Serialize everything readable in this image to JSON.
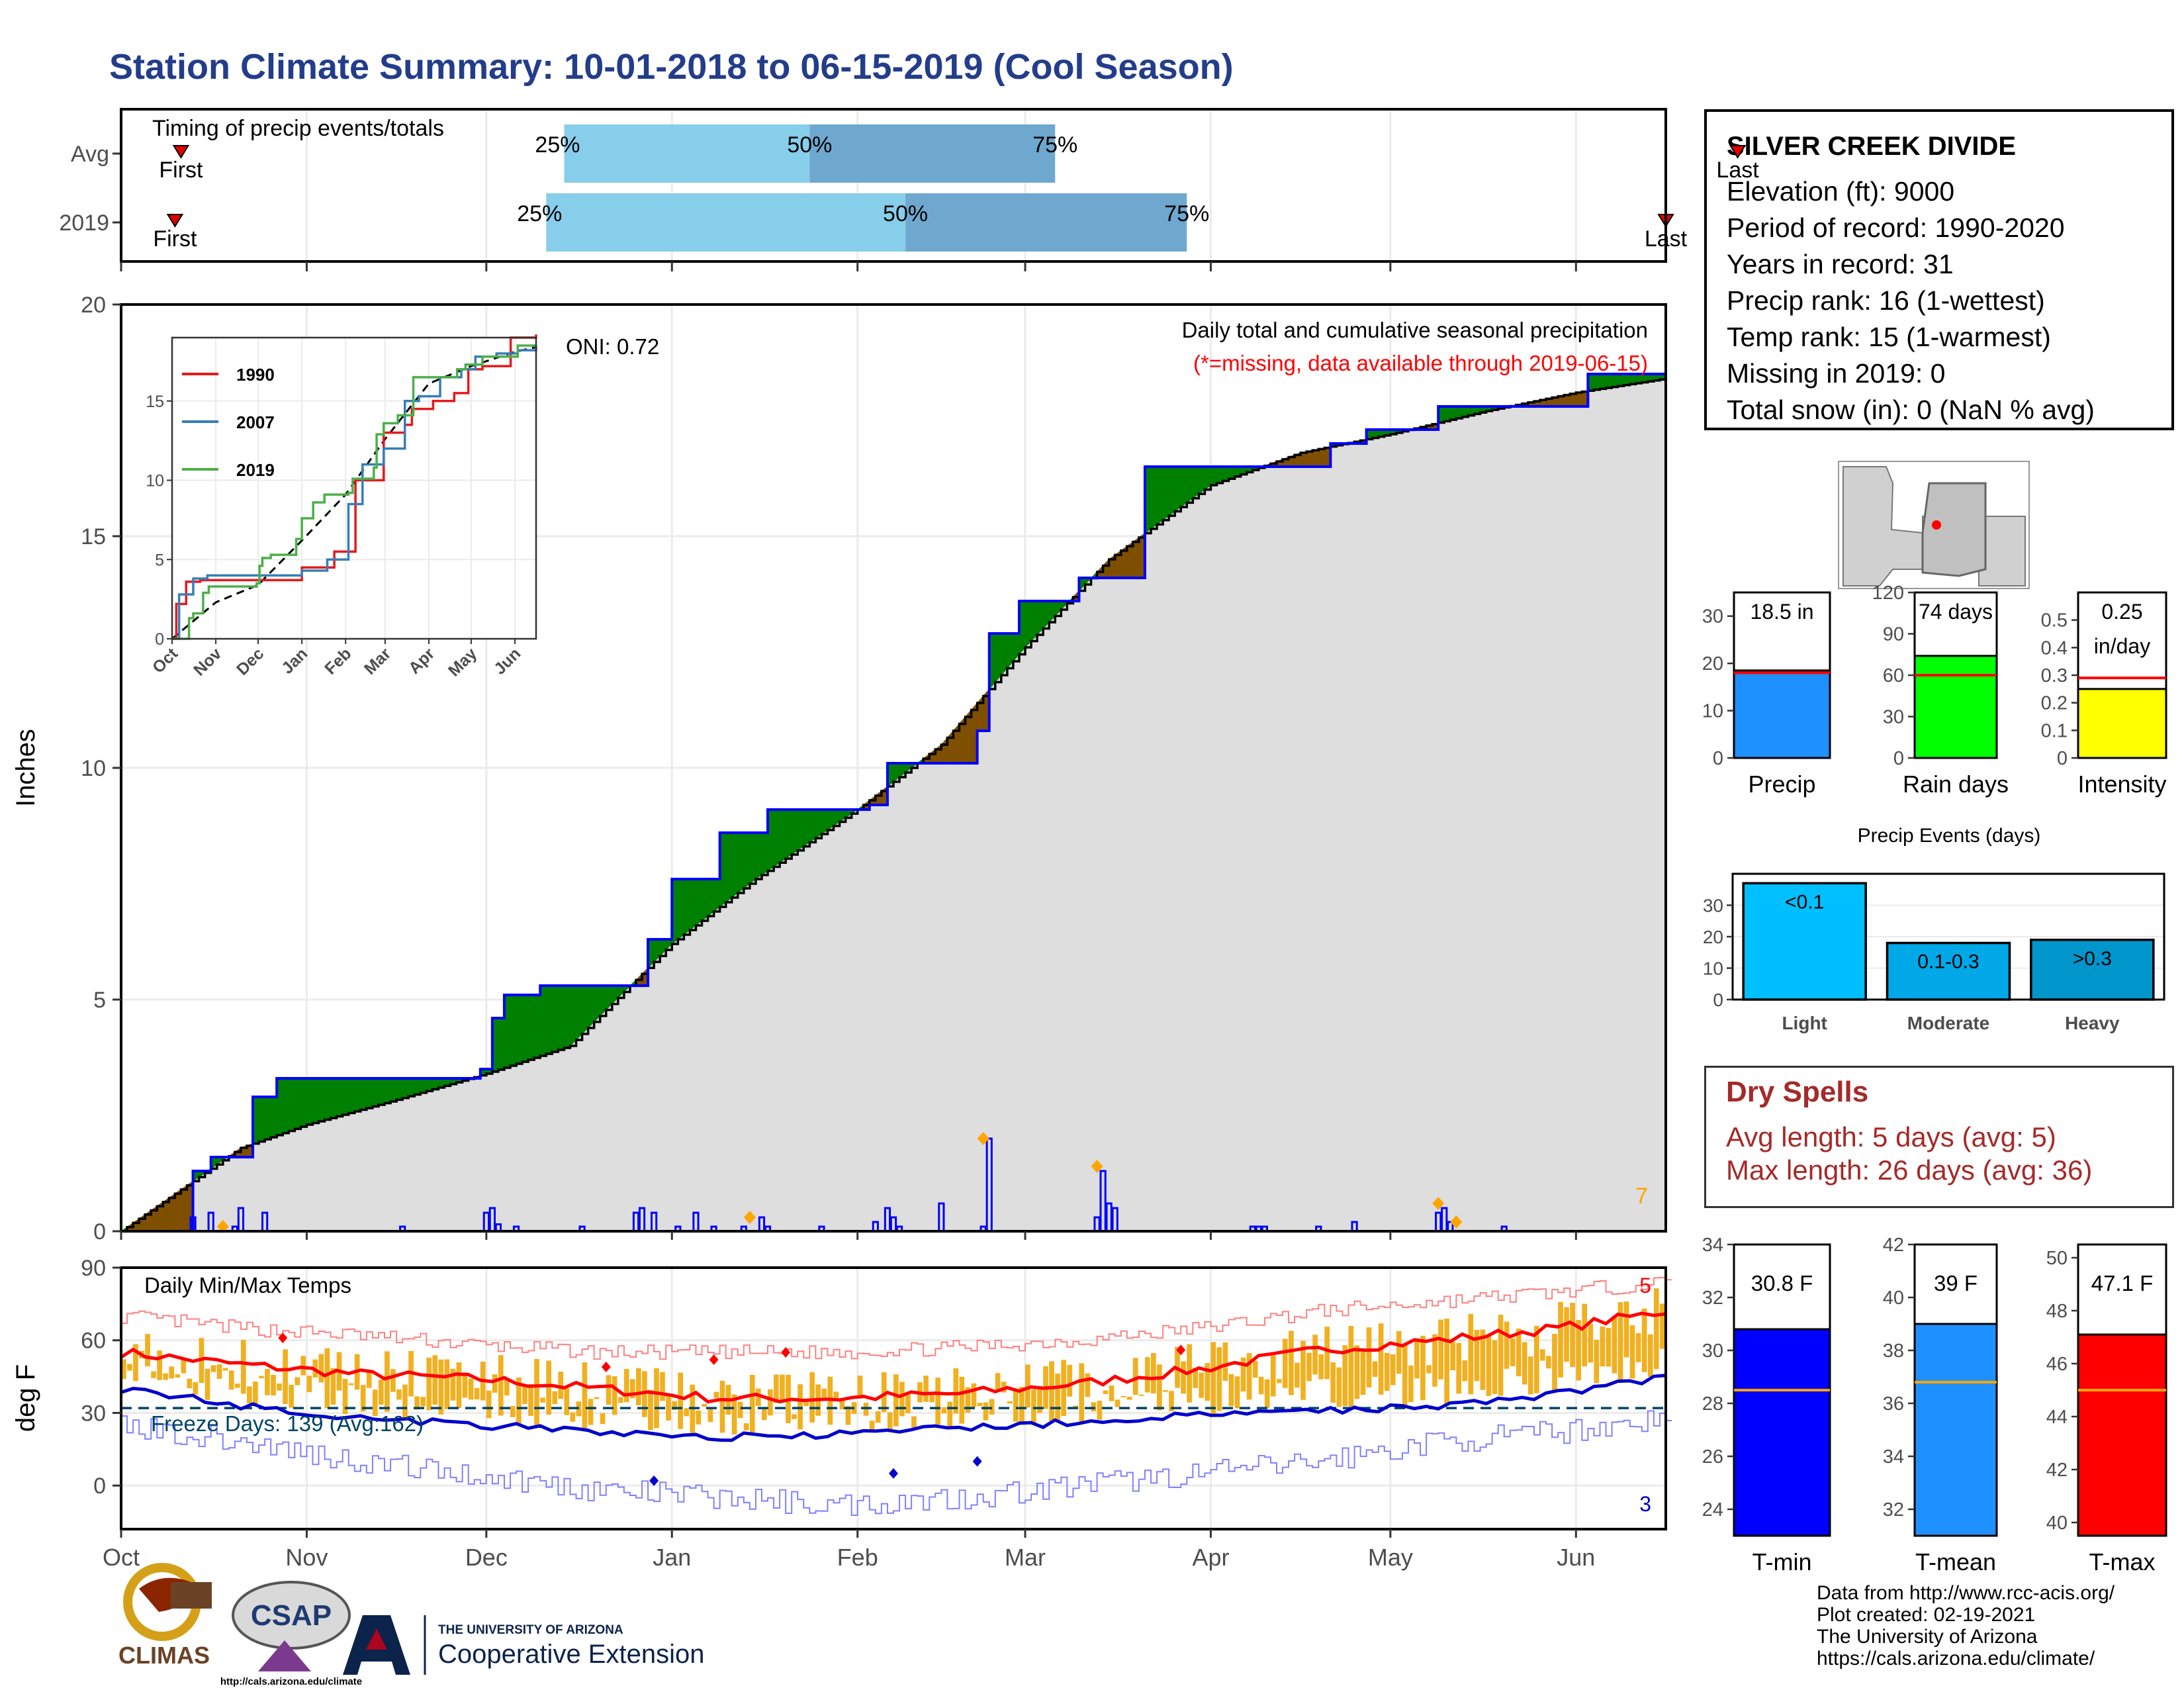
{
  "title": "Station Climate Summary: 10-01-2018 to 06-15-2019 (Cool Season)",
  "timing": {
    "label": "Timing of precip events/totals",
    "rows": [
      {
        "name": "Avg",
        "first_day": 10,
        "p25_day": 74,
        "p50_day": 115,
        "p75_day": 156,
        "last_day": 270
      },
      {
        "name": "2019",
        "first_day": 9,
        "p25_day": 71,
        "p50_day": 131,
        "p75_day": 178,
        "last_day": 258
      }
    ],
    "first_label": "First",
    "last_label": "Last",
    "p25_label": "25%",
    "p50_label": "50%",
    "p75_label": "75%",
    "colors": {
      "lower": "#87ceeb",
      "upper": "#6fa8cf",
      "marker": "#e00000"
    }
  },
  "station": {
    "name": "SILVER CREEK DIVIDE",
    "lines": [
      "Elevation (ft): 9000",
      "Period of record: 1990-2020",
      "Years in record: 31",
      "Precip rank: 16 (1-wettest)",
      "Temp rank: 15 (1-warmest)",
      "Missing in 2019: 0",
      "Total snow (in): 0 (NaN % avg)"
    ]
  },
  "axis": {
    "months": [
      "Oct",
      "Nov",
      "Dec",
      "Jan",
      "Feb",
      "Mar",
      "Apr",
      "May",
      "Jun"
    ],
    "month_start_days": [
      0,
      31,
      61,
      92,
      123,
      151,
      182,
      212,
      243
    ],
    "total_days": 258
  },
  "chart_data": [
    {
      "type": "area",
      "name": "cumulative-precip",
      "ylabel": "Inches",
      "ylim": [
        0,
        20
      ],
      "yticks": [
        0,
        5,
        10,
        15,
        20
      ],
      "title": "Daily total and cumulative seasonal precipitation",
      "subtitle": "(*=missing, data available through 2019-06-15)",
      "oni_label": "ONI: 0.72",
      "corner_value": "7",
      "avg_cumulative": {
        "day": [
          0,
          10,
          20,
          31,
          45,
          61,
          75,
          92,
          106,
          123,
          137,
          151,
          165,
          182,
          197,
          212,
          228,
          243,
          258
        ],
        "inches": [
          0,
          0.9,
          1.8,
          2.3,
          2.8,
          3.4,
          4.0,
          6.2,
          7.6,
          9.1,
          10.5,
          12.6,
          14.5,
          16.1,
          16.8,
          17.2,
          17.7,
          18.1,
          18.4
        ]
      },
      "obs_cumulative": {
        "day": [
          0,
          12,
          15,
          22,
          26,
          60,
          62,
          64,
          70,
          84,
          88,
          92,
          100,
          108,
          125,
          128,
          143,
          145,
          150,
          158,
          160,
          171,
          183,
          202,
          208,
          220,
          245,
          258
        ],
        "inches": [
          0,
          1.3,
          1.6,
          2.9,
          3.3,
          3.5,
          4.6,
          5.1,
          5.3,
          5.3,
          6.3,
          7.6,
          8.6,
          9.1,
          9.2,
          10.1,
          10.8,
          12.9,
          13.6,
          13.6,
          14.1,
          16.5,
          16.5,
          17.0,
          17.3,
          17.8,
          18.5,
          18.5
        ]
      },
      "daily_bars": {
        "day": [
          12,
          15,
          19,
          20,
          24,
          47,
          61,
          62,
          63,
          66,
          77,
          86,
          87,
          89,
          93,
          96,
          99,
          104,
          107,
          108,
          117,
          126,
          128,
          129,
          130,
          137,
          144,
          145,
          163,
          164,
          165,
          166,
          189,
          190,
          191,
          200,
          206,
          220,
          221,
          222,
          231
        ],
        "inches": [
          0.3,
          0.4,
          0.1,
          0.5,
          0.4,
          0.1,
          0.4,
          0.5,
          0.15,
          0.1,
          0.1,
          0.4,
          0.5,
          0.4,
          0.1,
          0.4,
          0.1,
          0.1,
          0.3,
          0.1,
          0.1,
          0.2,
          0.5,
          0.3,
          0.1,
          0.6,
          0.1,
          2.0,
          0.3,
          1.3,
          0.6,
          0.5,
          0.1,
          0.1,
          0.1,
          0.1,
          0.2,
          0.4,
          0.5,
          0.2,
          0.1
        ]
      },
      "max_markers_day": [
        17,
        105,
        144,
        163,
        220,
        223
      ],
      "max_markers_inches": [
        0.1,
        0.3,
        2.0,
        1.4,
        0.6,
        0.2
      ],
      "colors": {
        "above": "#008000",
        "below": "#7f4f00",
        "fill": "#dedede",
        "obs": "#0000ff",
        "avg": "#000000",
        "bars": "#0000ff",
        "markers": "#ffa500"
      }
    },
    {
      "type": "line",
      "name": "cumulative-inset",
      "x_ticks": [
        "Oct",
        "Nov",
        "Dec",
        "Jan",
        "Feb",
        "Mar",
        "Apr",
        "May",
        "Jun"
      ],
      "ylim": [
        0,
        19
      ],
      "yticks": [
        0,
        5,
        10,
        15
      ],
      "series": [
        {
          "name": "1990",
          "color": "#e41a1c",
          "day": [
            0,
            3,
            10,
            20,
            31,
            60,
            70,
            90,
            92,
            110,
            115,
            130,
            150,
            165,
            170,
            185,
            200,
            210,
            220,
            240,
            258
          ],
          "inches": [
            0,
            2.2,
            3.6,
            3.7,
            3.7,
            3.7,
            3.7,
            3.7,
            4.5,
            4.5,
            5.5,
            10.0,
            13.0,
            13.5,
            14.5,
            15.0,
            15.5,
            17.0,
            17.2,
            19.0,
            19.2
          ]
        },
        {
          "name": "2007",
          "color": "#377eb8",
          "day": [
            0,
            5,
            15,
            25,
            31,
            40,
            60,
            80,
            92,
            110,
            125,
            135,
            150,
            165,
            175,
            190,
            205,
            215,
            230,
            245,
            258
          ],
          "inches": [
            0,
            2.8,
            3.8,
            4.0,
            4.0,
            4.0,
            4.0,
            4.0,
            4.3,
            5.0,
            8.5,
            11.0,
            12.0,
            15.0,
            15.3,
            16.5,
            17.0,
            17.8,
            18.0,
            18.2,
            18.5
          ]
        },
        {
          "name": "2019",
          "color": "#4daf4a",
          "day": [
            0,
            12,
            15,
            22,
            26,
            60,
            62,
            64,
            70,
            84,
            88,
            92,
            100,
            108,
            125,
            128,
            143,
            145,
            150,
            158,
            160,
            171,
            183,
            202,
            208,
            220,
            245,
            258
          ],
          "inches": [
            0,
            1.3,
            1.6,
            2.9,
            3.3,
            3.5,
            4.6,
            5.1,
            5.3,
            5.3,
            6.3,
            7.6,
            8.6,
            9.1,
            9.2,
            10.1,
            10.8,
            12.9,
            13.6,
            13.6,
            14.1,
            16.5,
            16.5,
            17.0,
            17.3,
            17.8,
            18.5,
            18.5
          ]
        }
      ],
      "avg_series": {
        "day": [
          0,
          31,
          61,
          92,
          123,
          151,
          182,
          212,
          243,
          258
        ],
        "inches": [
          0,
          2.3,
          3.4,
          6.2,
          9.1,
          12.6,
          16.1,
          17.2,
          18.1,
          18.4
        ]
      }
    },
    {
      "type": "bar",
      "name": "daily-temps",
      "title": "Daily Min/Max Temps",
      "ylabel": "deg F",
      "ylim": [
        -18,
        90
      ],
      "yticks": [
        0,
        30,
        60,
        90
      ],
      "freeze_line": 32,
      "freeze_label": "Freeze Days: 139 (Avg:162)",
      "record_high_count": "5",
      "record_low_count": "3",
      "avg_max": {
        "day": [
          0,
          20,
          40,
          60,
          80,
          100,
          120,
          140,
          160,
          180,
          200,
          220,
          240,
          258
        ],
        "degF": [
          55,
          50,
          46,
          44,
          40,
          36,
          36,
          38,
          42,
          48,
          56,
          60,
          65,
          72
        ]
      },
      "avg_min": {
        "day": [
          0,
          20,
          40,
          60,
          80,
          100,
          120,
          140,
          160,
          180,
          200,
          220,
          240,
          258
        ],
        "degF": [
          40,
          33,
          28,
          25,
          22,
          20,
          21,
          24,
          26,
          29,
          31,
          33,
          38,
          45
        ]
      },
      "rec_max": {
        "day": [
          0,
          20,
          40,
          60,
          80,
          100,
          120,
          140,
          160,
          180,
          200,
          220,
          240,
          258
        ],
        "degF": [
          70,
          65,
          62,
          58,
          55,
          55,
          55,
          57,
          60,
          65,
          72,
          76,
          80,
          84
        ]
      },
      "rec_min": {
        "day": [
          0,
          20,
          40,
          60,
          80,
          100,
          120,
          140,
          160,
          180,
          200,
          220,
          240,
          258
        ],
        "degF": [
          25,
          18,
          10,
          4,
          -2,
          -5,
          -8,
          -5,
          0,
          5,
          10,
          18,
          22,
          28
        ]
      },
      "colors": {
        "bars": "#f0b020",
        "avg_max": "#ff0000",
        "avg_min": "#0000cc",
        "rec_max": "#ff8080",
        "rec_min": "#8080ff",
        "freeze": "#004466"
      }
    },
    {
      "type": "bar",
      "name": "precip-summary",
      "panels": [
        {
          "label": "Precip",
          "value": 18.5,
          "value_label": "18.5 in",
          "avg": 18.0,
          "ymax": 35,
          "yticks": [
            0,
            10,
            20,
            30
          ],
          "color": "#1e90ff"
        },
        {
          "label": "Rain days",
          "value": 74,
          "value_label": "74 days",
          "avg": 60,
          "ymax": 120,
          "yticks": [
            0,
            30,
            60,
            90,
            120
          ],
          "color": "#00ff00"
        },
        {
          "label": "Intensity",
          "value": 0.25,
          "value_label": "0.25",
          "value_label2": "in/day",
          "avg": 0.29,
          "ymax": 0.6,
          "yticks": [
            0.0,
            0.1,
            0.2,
            0.3,
            0.4,
            0.5
          ],
          "color": "#ffff00"
        }
      ]
    },
    {
      "type": "bar",
      "name": "precip-events",
      "title": "Precip Events (days)",
      "categories": [
        "Light",
        "Moderate",
        "Heavy"
      ],
      "bar_labels": [
        "<0.1",
        "0.1-0.3",
        ">0.3"
      ],
      "values": [
        37,
        18,
        19
      ],
      "ymax": 40,
      "yticks": [
        0,
        10,
        20,
        30
      ],
      "colors": [
        "#00bfff",
        "#00a8e8",
        "#0096cc"
      ]
    },
    {
      "type": "bar",
      "name": "temp-summary",
      "panels": [
        {
          "label": "T-min",
          "value": 30.8,
          "value_label": "30.8 F",
          "avg": 28.5,
          "ymin": 23,
          "ymax": 34,
          "yticks": [
            24,
            26,
            28,
            30,
            32,
            34
          ],
          "color": "#0000ff"
        },
        {
          "label": "T-mean",
          "value": 39,
          "value_label": "39 F",
          "avg": 36.8,
          "ymin": 31,
          "ymax": 42,
          "yticks": [
            32,
            34,
            36,
            38,
            40,
            42
          ],
          "color": "#1e90ff"
        },
        {
          "label": "T-max",
          "value": 47.1,
          "value_label": "47.1 F",
          "avg": 45.0,
          "ymin": 39.5,
          "ymax": 50.5,
          "yticks": [
            40,
            42,
            44,
            46,
            48,
            50
          ],
          "color": "#ff0000"
        }
      ]
    }
  ],
  "dry_spells": {
    "title": "Dry Spells",
    "avg_line": "Avg length: 5 days (avg: 5)",
    "max_line": "Max length: 26 days (avg: 36)"
  },
  "logos": {
    "climas": "CLIMAS",
    "csap": "CSAP",
    "csap_url": "http://cals.arizona.edu/climate",
    "ua_top": "THE UNIVERSITY OF ARIZONA",
    "ua_bottom": "Cooperative Extension"
  },
  "credits": [
    "Data from http://www.rcc-acis.org/",
    "Plot created: 02-19-2021",
    "The University of Arizona",
    "https://cals.arizona.edu/climate/"
  ]
}
